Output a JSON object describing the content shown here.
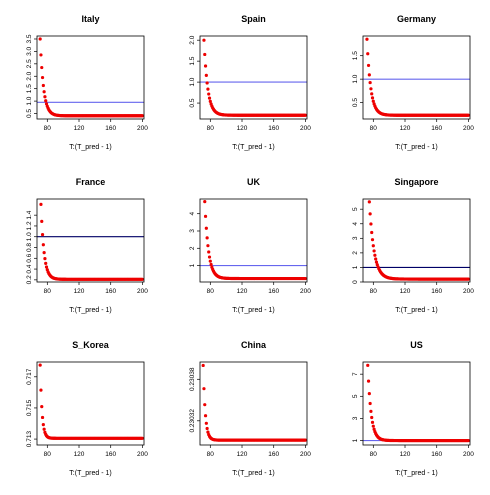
{
  "chart_data": [
    {
      "type": "scatter",
      "title": "Italy",
      "xlabel": "T:(T_pred - 1)",
      "ylabel": "",
      "xlim": [
        67,
        202
      ],
      "ylim": [
        0.28,
        3.62
      ],
      "xticks": [
        80,
        120,
        160,
        200
      ],
      "yticks": [
        0.5,
        1.0,
        1.5,
        2.0,
        2.5,
        3.0,
        3.5
      ],
      "ytick_labels": [
        "0.5",
        "1.0",
        "1.5",
        "2.0",
        "2.5",
        "3.0",
        "3.5"
      ],
      "hline": 0.95,
      "hline_color": "#6666ee",
      "point_color": "#ee0000",
      "curve": {
        "x_start": 71,
        "x_end": 200,
        "y_start": 3.5,
        "y_end": 0.41,
        "decay": 5.0
      }
    },
    {
      "type": "scatter",
      "title": "Spain",
      "xlabel": "T:(T_pred - 1)",
      "ylabel": "",
      "xlim": [
        67,
        202
      ],
      "ylim": [
        0.12,
        2.1
      ],
      "xticks": [
        80,
        120,
        160,
        200
      ],
      "yticks": [
        0.5,
        1.0,
        1.5,
        2.0
      ],
      "ytick_labels": [
        "0.5",
        "1.0",
        "1.5",
        "2.0"
      ],
      "hline": 1.0,
      "hline_color": "#6666ee",
      "point_color": "#ee0000",
      "curve": {
        "x_start": 72,
        "x_end": 200,
        "y_start": 2.0,
        "y_end": 0.21,
        "decay": 4.5
      }
    },
    {
      "type": "scatter",
      "title": "Germany",
      "xlabel": "T:(T_pred - 1)",
      "ylabel": "",
      "xlim": [
        67,
        202
      ],
      "ylim": [
        0.15,
        1.92
      ],
      "xticks": [
        80,
        120,
        160,
        200
      ],
      "yticks": [
        0.5,
        1.0,
        1.5
      ],
      "ytick_labels": [
        "0.5",
        "1.0",
        "1.5"
      ],
      "hline": 1.0,
      "hline_color": "#6666ee",
      "point_color": "#ee0000",
      "curve": {
        "x_start": 72,
        "x_end": 200,
        "y_start": 1.85,
        "y_end": 0.23,
        "decay": 4.5
      }
    },
    {
      "type": "scatter",
      "title": "France",
      "xlabel": "T:(T_pred - 1)",
      "ylabel": "",
      "xlim": [
        67,
        202
      ],
      "ylim": [
        0.16,
        1.7
      ],
      "xticks": [
        80,
        120,
        160,
        200
      ],
      "yticks": [
        0.2,
        0.4,
        0.6,
        0.8,
        1.0,
        1.2,
        1.4
      ],
      "ytick_labels": [
        "0.2",
        "0.4",
        "0.6",
        "0.8",
        "1.0",
        "1.2",
        "1.4"
      ],
      "hline": 1.0,
      "hline_color": "#000066",
      "point_color": "#ee0000",
      "curve": {
        "x_start": 72,
        "x_end": 200,
        "y_start": 1.6,
        "y_end": 0.21,
        "decay": 5.5
      }
    },
    {
      "type": "scatter",
      "title": "UK",
      "xlabel": "T:(T_pred - 1)",
      "ylabel": "",
      "xlim": [
        67,
        202
      ],
      "ylim": [
        0.05,
        4.85
      ],
      "xticks": [
        80,
        120,
        160,
        200
      ],
      "yticks": [
        1,
        2,
        3,
        4
      ],
      "ytick_labels": [
        "1",
        "2",
        "3",
        "4"
      ],
      "hline": 1.0,
      "hline_color": "#6666ee",
      "point_color": "#ee0000",
      "curve": {
        "x_start": 73,
        "x_end": 200,
        "y_start": 4.7,
        "y_end": 0.25,
        "decay": 4.5
      }
    },
    {
      "type": "scatter",
      "title": "Singapore",
      "xlabel": "T:(T_pred - 1)",
      "ylabel": "",
      "xlim": [
        67,
        202
      ],
      "ylim": [
        0.0,
        5.7
      ],
      "xticks": [
        80,
        120,
        160,
        200
      ],
      "yticks": [
        0,
        1,
        2,
        3,
        4,
        5
      ],
      "ytick_labels": [
        "0",
        "1",
        "2",
        "3",
        "4",
        "5"
      ],
      "hline": 1.0,
      "hline_color": "#000066",
      "point_color": "#ee0000",
      "curve": {
        "x_start": 75,
        "x_end": 200,
        "y_start": 5.5,
        "y_end": 0.2,
        "decay": 3.5
      }
    },
    {
      "type": "scatter",
      "title": "S_Korea",
      "xlabel": "T:(T_pred - 1)",
      "ylabel": "",
      "xlim": [
        67,
        202
      ],
      "ylim": [
        0.71262,
        0.71795
      ],
      "xticks": [
        80,
        120,
        160,
        200
      ],
      "yticks": [
        0.713,
        0.715,
        0.717
      ],
      "ytick_labels": [
        "0.713",
        "0.715",
        "0.717"
      ],
      "hline": null,
      "hline_color": "#6666ee",
      "point_color": "#ee0000",
      "curve": {
        "x_start": 71,
        "x_end": 200,
        "y_start": 0.71775,
        "y_end": 0.71305,
        "decay": 9.0
      }
    },
    {
      "type": "scatter",
      "title": "China",
      "xlabel": "T:(T_pred - 1)",
      "ylabel": "",
      "xlim": [
        67,
        202
      ],
      "ylim": [
        0.230285,
        0.230405
      ],
      "xticks": [
        80,
        120,
        160,
        200
      ],
      "yticks": [
        0.23032,
        0.23038
      ],
      "ytick_labels": [
        "0.23032",
        "0.23038"
      ],
      "hline": null,
      "hline_color": "#6666ee",
      "point_color": "#ee0000",
      "curve": {
        "x_start": 71,
        "x_end": 200,
        "y_start": 0.2304,
        "y_end": 0.230292,
        "decay": 8.0
      }
    },
    {
      "type": "scatter",
      "title": "US",
      "xlabel": "T:(T_pred - 1)",
      "ylabel": "",
      "xlim": [
        67,
        202
      ],
      "ylim": [
        0.6,
        8.1
      ],
      "xticks": [
        80,
        120,
        160,
        200
      ],
      "yticks": [
        1,
        3,
        5,
        7
      ],
      "ytick_labels": [
        "1",
        "3",
        "5",
        "7"
      ],
      "hline": 1.0,
      "hline_color": "#6666ee",
      "point_color": "#ee0000",
      "curve": {
        "x_start": 73,
        "x_end": 200,
        "y_start": 7.8,
        "y_end": 1.0,
        "decay": 5.0
      }
    }
  ]
}
